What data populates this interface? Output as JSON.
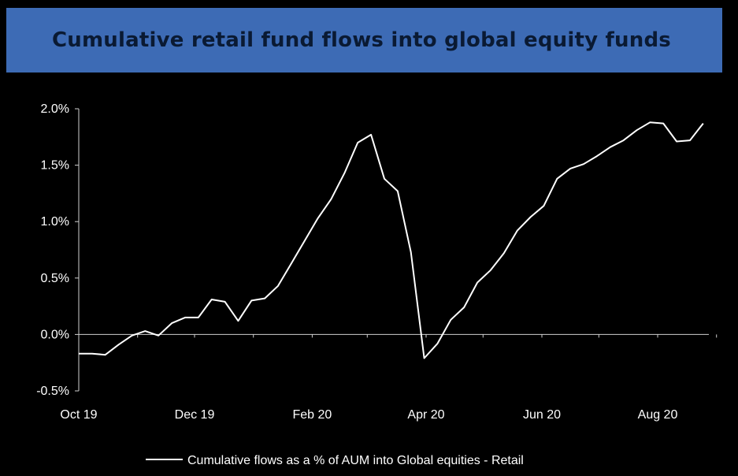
{
  "header": {
    "title": "Cumulative retail fund flows into global equity funds"
  },
  "chart_data": {
    "type": "line",
    "title": "Cumulative retail fund flows into global equity funds",
    "xlabel": "",
    "ylabel": "",
    "x_tick_labels": [
      "Oct 19",
      "Dec 19",
      "Feb 20",
      "Apr 20",
      "Jun 20",
      "Aug 20"
    ],
    "y_tick_labels": [
      "2.0%",
      "1.5%",
      "1.0%",
      "0.5%",
      "0.0%",
      "-0.5%"
    ],
    "ylim": [
      -0.5,
      2.0
    ],
    "grid": false,
    "legend_position": "bottom",
    "series": [
      {
        "name": "Cumulative flows as a  % of AUM into Global equities - Retail",
        "color": "#ffffff",
        "x": [
          "2019-10-01",
          "2019-10-08",
          "2019-10-15",
          "2019-10-22",
          "2019-10-29",
          "2019-11-05",
          "2019-11-12",
          "2019-11-19",
          "2019-11-26",
          "2019-12-03",
          "2019-12-10",
          "2019-12-17",
          "2019-12-24",
          "2019-12-31",
          "2020-01-07",
          "2020-01-14",
          "2020-01-21",
          "2020-01-28",
          "2020-02-04",
          "2020-02-11",
          "2020-02-18",
          "2020-02-25",
          "2020-03-03",
          "2020-03-10",
          "2020-03-17",
          "2020-03-24",
          "2020-03-31",
          "2020-04-07",
          "2020-04-14",
          "2020-04-21",
          "2020-04-28",
          "2020-05-05",
          "2020-05-12",
          "2020-05-19",
          "2020-05-26",
          "2020-06-02",
          "2020-06-09",
          "2020-06-16",
          "2020-06-23",
          "2020-06-30",
          "2020-07-07",
          "2020-07-14",
          "2020-07-21",
          "2020-07-28",
          "2020-08-04",
          "2020-08-11",
          "2020-08-18",
          "2020-08-25",
          "2020-09-01",
          "2020-09-08"
        ],
        "values": [
          -0.17,
          -0.17,
          -0.18,
          -0.09,
          -0.01,
          0.03,
          -0.01,
          0.1,
          0.15,
          0.15,
          0.31,
          0.29,
          0.12,
          0.3,
          0.32,
          0.43,
          0.63,
          0.83,
          1.03,
          1.2,
          1.43,
          1.7,
          1.77,
          1.38,
          1.27,
          0.73,
          -0.21,
          -0.08,
          0.13,
          0.24,
          0.46,
          0.57,
          0.72,
          0.92,
          1.04,
          1.14,
          1.38,
          1.47,
          1.51,
          1.58,
          1.66,
          1.72,
          1.81,
          1.88,
          1.87,
          1.71,
          1.72,
          1.87,
          null,
          null
        ]
      }
    ]
  }
}
